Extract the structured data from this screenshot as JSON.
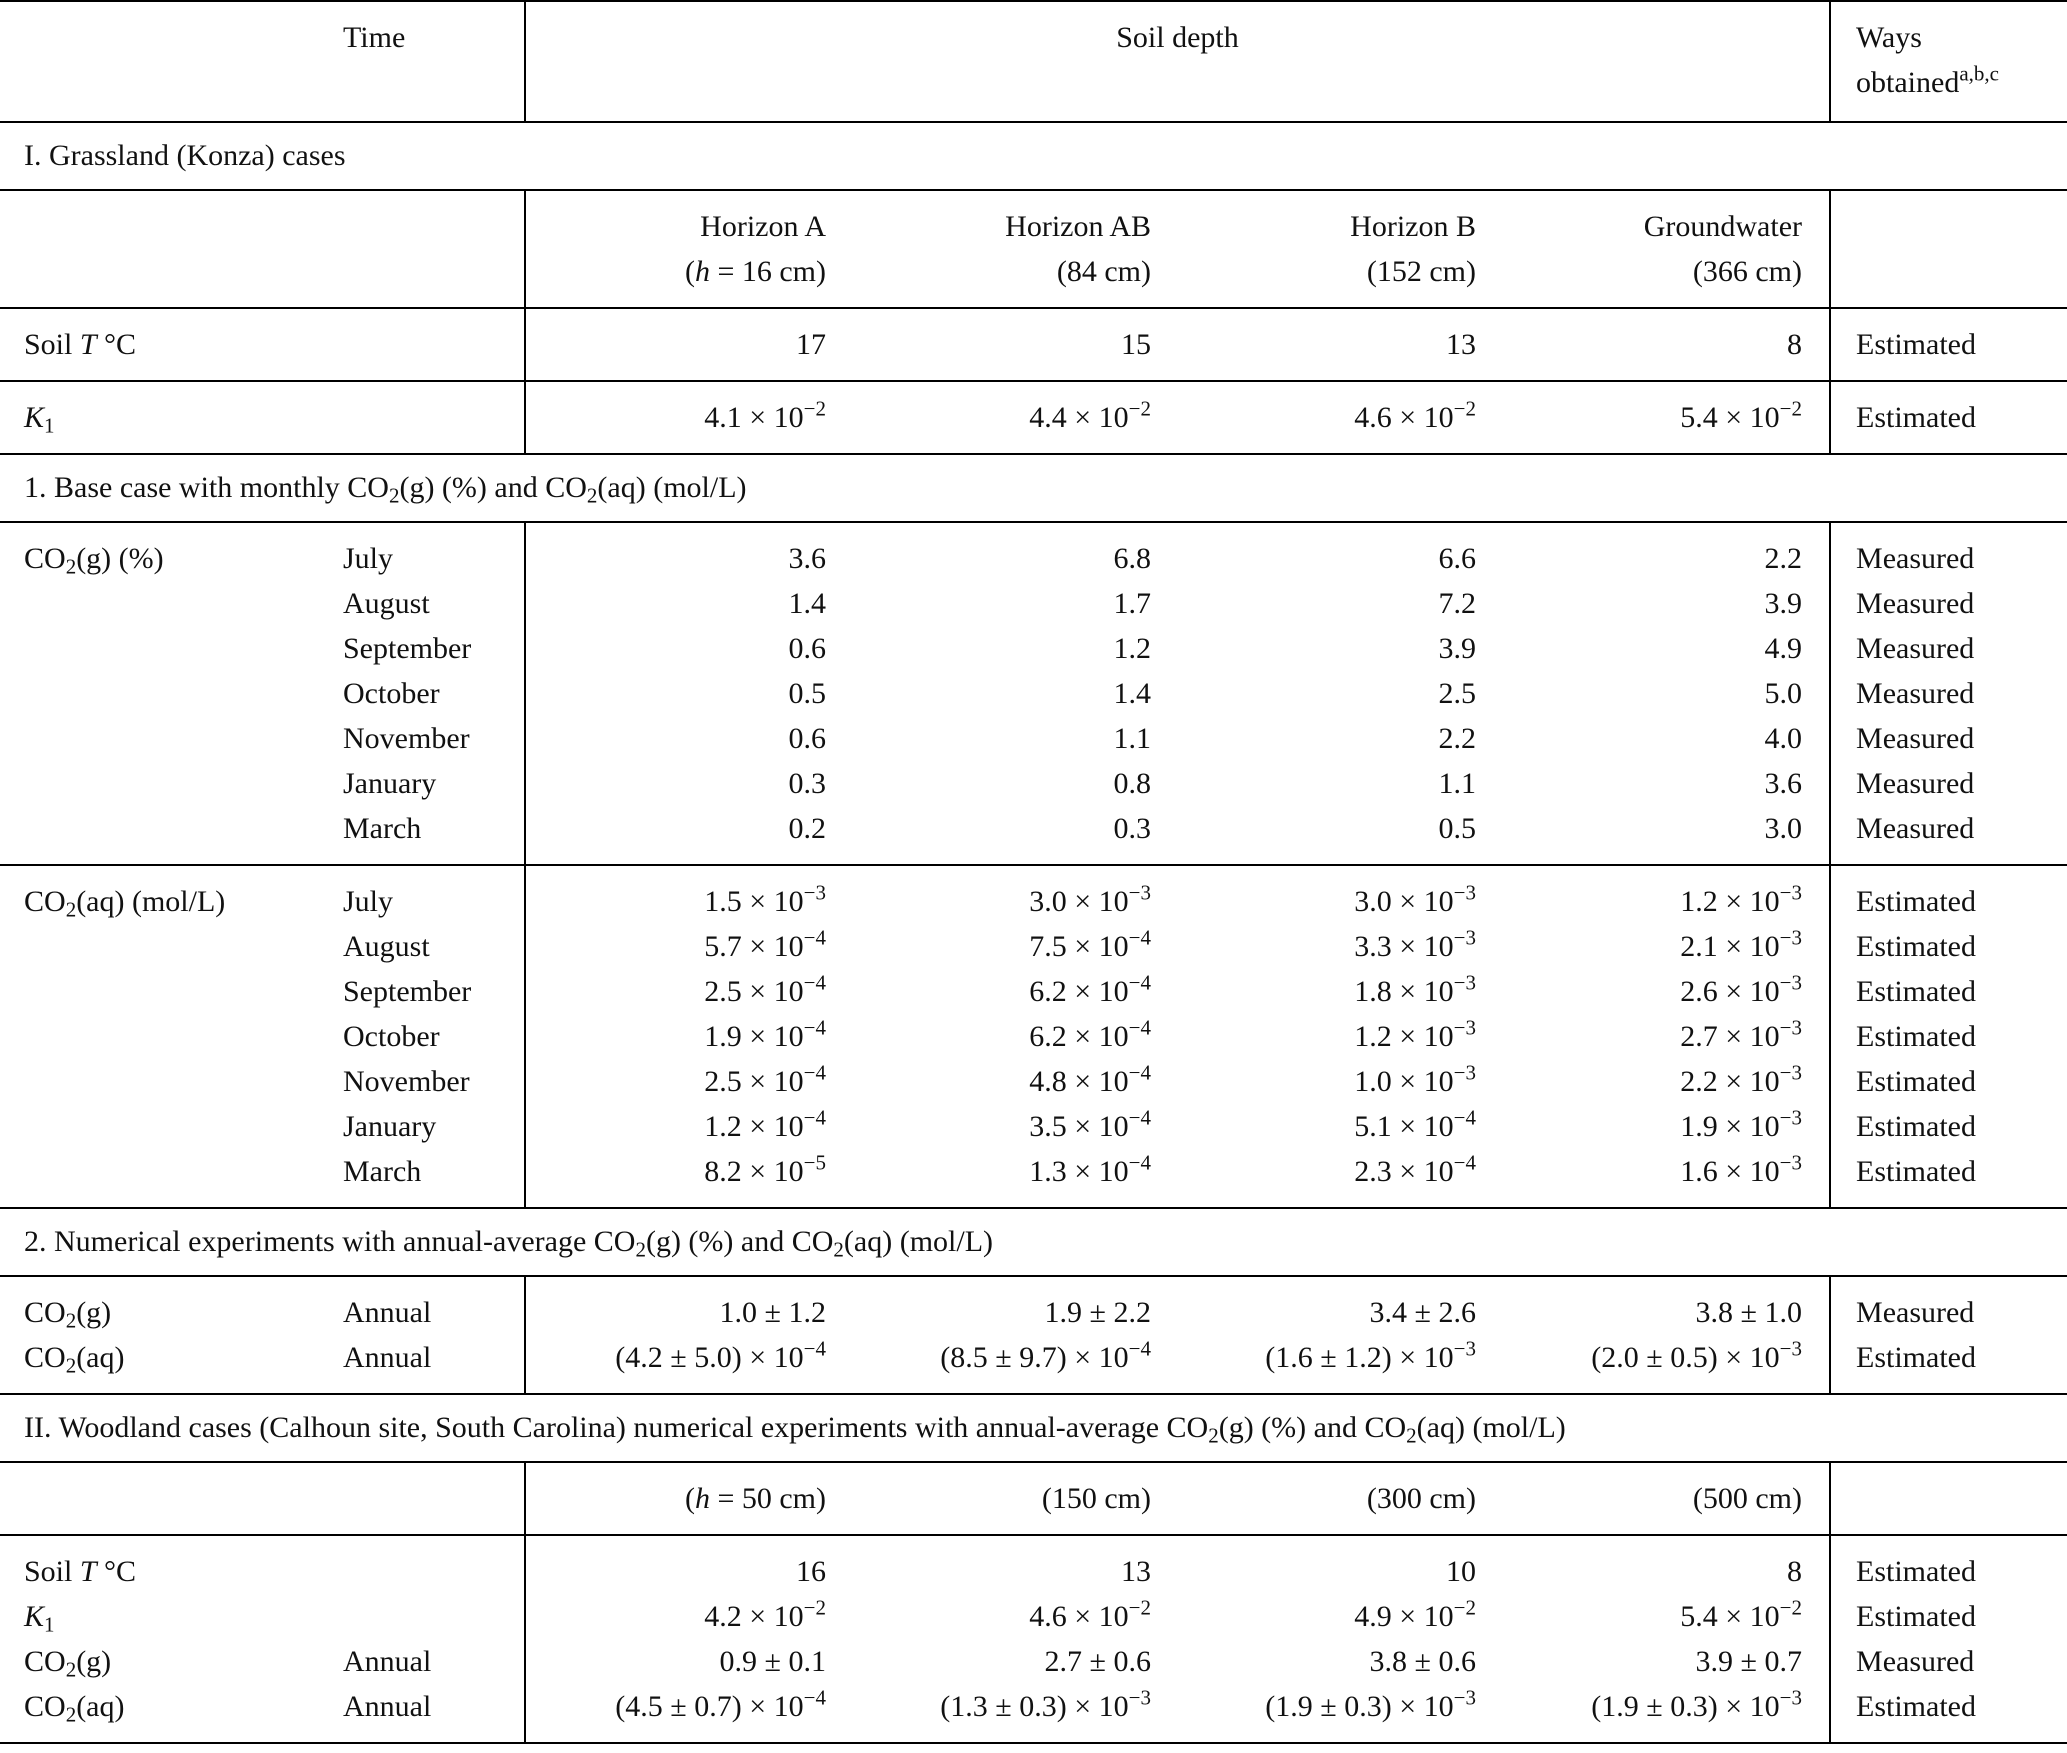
{
  "header": {
    "time": "Time",
    "soil_depth": "Soil depth",
    "ways": [
      "Ways obtained",
      {
        "sup": "a,b,c"
      }
    ]
  },
  "blocks": [
    {
      "title": "I. Grassland (Konza) cases"
    },
    {
      "rows": [
        [
          null,
          null,
          "Horizon A",
          "Horizon AB",
          "Horizon B",
          "Groundwater",
          null
        ],
        [
          null,
          null,
          [
            "(",
            {
              "i": "h"
            },
            " = 16 cm)"
          ],
          "(84 cm)",
          "(152 cm)",
          "(366 cm)",
          null
        ]
      ]
    },
    {
      "rows": [
        [
          [
            "Soil ",
            {
              "i": "T"
            },
            " °C"
          ],
          null,
          "17",
          "15",
          "13",
          "8",
          "Estimated"
        ]
      ]
    },
    {
      "rows": [
        [
          [
            {
              "i": "K"
            },
            {
              "sub": "1"
            }
          ],
          null,
          [
            "4.1 × 10",
            {
              "sup": "−2"
            }
          ],
          [
            "4.4 × 10",
            {
              "sup": "−2"
            }
          ],
          [
            "4.6 × 10",
            {
              "sup": "−2"
            }
          ],
          [
            "5.4 × 10",
            {
              "sup": "−2"
            }
          ],
          "Estimated"
        ]
      ]
    },
    {
      "title": [
        "1. Base case with monthly CO",
        {
          "sub": "2"
        },
        "(g) (%) and CO",
        {
          "sub": "2"
        },
        "(aq) (mol/L)"
      ]
    },
    {
      "rows": [
        [
          [
            "CO",
            {
              "sub": "2"
            },
            "(g) (%)"
          ],
          "July",
          "3.6",
          "6.8",
          "6.6",
          "2.2",
          "Measured"
        ],
        [
          null,
          "August",
          "1.4",
          "1.7",
          "7.2",
          "3.9",
          "Measured"
        ],
        [
          null,
          "September",
          "0.6",
          "1.2",
          "3.9",
          "4.9",
          "Measured"
        ],
        [
          null,
          "October",
          "0.5",
          "1.4",
          "2.5",
          "5.0",
          "Measured"
        ],
        [
          null,
          "November",
          "0.6",
          "1.1",
          "2.2",
          "4.0",
          "Measured"
        ],
        [
          null,
          "January",
          "0.3",
          "0.8",
          "1.1",
          "3.6",
          "Measured"
        ],
        [
          null,
          "March",
          "0.2",
          "0.3",
          "0.5",
          "3.0",
          "Measured"
        ]
      ]
    },
    {
      "rows": [
        [
          [
            "CO",
            {
              "sub": "2"
            },
            "(aq) (mol/L)"
          ],
          "July",
          [
            "1.5 × 10",
            {
              "sup": "−3"
            }
          ],
          [
            "3.0 × 10",
            {
              "sup": "−3"
            }
          ],
          [
            "3.0 × 10",
            {
              "sup": "−3"
            }
          ],
          [
            "1.2 × 10",
            {
              "sup": "−3"
            }
          ],
          "Estimated"
        ],
        [
          null,
          "August",
          [
            "5.7 × 10",
            {
              "sup": "−4"
            }
          ],
          [
            "7.5 × 10",
            {
              "sup": "−4"
            }
          ],
          [
            "3.3 × 10",
            {
              "sup": "−3"
            }
          ],
          [
            "2.1 × 10",
            {
              "sup": "−3"
            }
          ],
          "Estimated"
        ],
        [
          null,
          "September",
          [
            "2.5 × 10",
            {
              "sup": "−4"
            }
          ],
          [
            "6.2 × 10",
            {
              "sup": "−4"
            }
          ],
          [
            "1.8 × 10",
            {
              "sup": "−3"
            }
          ],
          [
            "2.6 × 10",
            {
              "sup": "−3"
            }
          ],
          "Estimated"
        ],
        [
          null,
          "October",
          [
            "1.9 × 10",
            {
              "sup": "−4"
            }
          ],
          [
            "6.2 × 10",
            {
              "sup": "−4"
            }
          ],
          [
            "1.2 × 10",
            {
              "sup": "−3"
            }
          ],
          [
            "2.7 × 10",
            {
              "sup": "−3"
            }
          ],
          "Estimated"
        ],
        [
          null,
          "November",
          [
            "2.5 × 10",
            {
              "sup": "−4"
            }
          ],
          [
            "4.8 × 10",
            {
              "sup": "−4"
            }
          ],
          [
            "1.0 × 10",
            {
              "sup": "−3"
            }
          ],
          [
            "2.2 × 10",
            {
              "sup": "−3"
            }
          ],
          "Estimated"
        ],
        [
          null,
          "January",
          [
            "1.2 × 10",
            {
              "sup": "−4"
            }
          ],
          [
            "3.5 × 10",
            {
              "sup": "−4"
            }
          ],
          [
            "5.1 × 10",
            {
              "sup": "−4"
            }
          ],
          [
            "1.9 × 10",
            {
              "sup": "−3"
            }
          ],
          "Estimated"
        ],
        [
          null,
          "March",
          [
            "8.2 × 10",
            {
              "sup": "−5"
            }
          ],
          [
            "1.3 × 10",
            {
              "sup": "−4"
            }
          ],
          [
            "2.3 × 10",
            {
              "sup": "−4"
            }
          ],
          [
            "1.6 × 10",
            {
              "sup": "−3"
            }
          ],
          "Estimated"
        ]
      ]
    },
    {
      "title": [
        "2. Numerical experiments with annual-average CO",
        {
          "sub": "2"
        },
        "(g) (%) and CO",
        {
          "sub": "2"
        },
        "(aq) (mol/L)"
      ]
    },
    {
      "rows": [
        [
          [
            "CO",
            {
              "sub": "2"
            },
            "(g)"
          ],
          "Annual",
          "1.0 ± 1.2",
          "1.9 ± 2.2",
          "3.4 ± 2.6",
          "3.8 ± 1.0",
          "Measured"
        ],
        [
          [
            "CO",
            {
              "sub": "2"
            },
            "(aq)"
          ],
          "Annual",
          [
            "(4.2 ± 5.0) × 10",
            {
              "sup": "−4"
            }
          ],
          [
            "(8.5 ± 9.7) × 10",
            {
              "sup": "−4"
            }
          ],
          [
            "(1.6 ± 1.2) × 10",
            {
              "sup": "−3"
            }
          ],
          [
            "(2.0 ± 0.5) × 10",
            {
              "sup": "−3"
            }
          ],
          "Estimated"
        ]
      ]
    },
    {
      "title": [
        "II. Woodland cases (Calhoun site, South Carolina) numerical experiments with annual-average CO",
        {
          "sub": "2"
        },
        "(g) (%) and CO",
        {
          "sub": "2"
        },
        "(aq) (mol/L)"
      ]
    },
    {
      "rows": [
        [
          null,
          null,
          [
            "(",
            {
              "i": "h"
            },
            " = 50 cm)"
          ],
          "(150 cm)",
          "(300 cm)",
          "(500 cm)",
          null
        ]
      ]
    },
    {
      "rows": [
        [
          [
            "Soil ",
            {
              "i": "T"
            },
            " °C"
          ],
          null,
          "16",
          "13",
          "10",
          "8",
          "Estimated"
        ],
        [
          [
            {
              "i": "K"
            },
            {
              "sub": "1"
            }
          ],
          null,
          [
            "4.2 × 10",
            {
              "sup": "−2"
            }
          ],
          [
            "4.6 × 10",
            {
              "sup": "−2"
            }
          ],
          [
            "4.9 × 10",
            {
              "sup": "−2"
            }
          ],
          [
            "5.4 × 10",
            {
              "sup": "−2"
            }
          ],
          "Estimated"
        ],
        [
          [
            "CO",
            {
              "sub": "2"
            },
            "(g)"
          ],
          "Annual",
          "0.9 ± 0.1",
          "2.7 ± 0.6",
          "3.8 ± 0.6",
          "3.9 ± 0.7",
          "Measured"
        ],
        [
          [
            "CO",
            {
              "sub": "2"
            },
            "(aq)"
          ],
          "Annual",
          [
            "(4.5 ± 0.7) × 10",
            {
              "sup": "−4"
            }
          ],
          [
            "(1.3 ± 0.3) × 10",
            {
              "sup": "−3"
            }
          ],
          [
            "(1.9 ± 0.3) × 10",
            {
              "sup": "−3"
            }
          ],
          [
            "(1.9 ± 0.3) × 10",
            {
              "sup": "−3"
            }
          ],
          "Estimated"
        ]
      ]
    }
  ]
}
